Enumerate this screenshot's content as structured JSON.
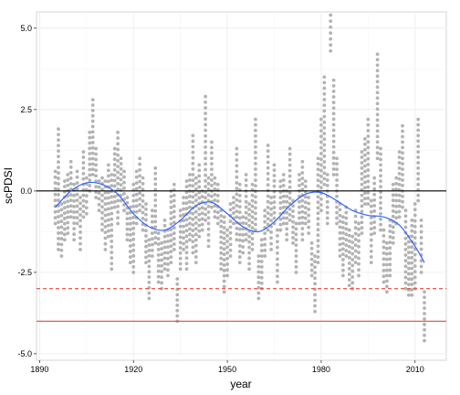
{
  "chart_data": {
    "type": "scatter",
    "xlabel": "year",
    "ylabel": "scPDSI",
    "xlim": [
      1889,
      2020
    ],
    "ylim": [
      -5.2,
      5.5
    ],
    "x_ticks": [
      1890,
      1920,
      1950,
      1980,
      2010
    ],
    "y_ticks": [
      -5.0,
      -2.5,
      0.0,
      2.5,
      5.0
    ],
    "x_tick_labels": [
      "1890",
      "1920",
      "1950",
      "1980",
      "2010"
    ],
    "y_tick_labels": [
      "-5.0",
      "-2.5",
      "0.0",
      "2.5",
      "5.0"
    ],
    "grid": true,
    "legend": "none",
    "point_color": "#b3b3b3",
    "annual_ranges": [
      [
        1895,
        -1.0,
        0.6
      ],
      [
        1896,
        -1.8,
        1.9
      ],
      [
        1897,
        -2.0,
        -0.4
      ],
      [
        1898,
        -1.5,
        0.3
      ],
      [
        1899,
        -1.3,
        0.5
      ],
      [
        1900,
        -0.8,
        0.9
      ],
      [
        1901,
        -1.5,
        0.2
      ],
      [
        1902,
        -1.0,
        0.6
      ],
      [
        1903,
        -1.8,
        -0.2
      ],
      [
        1904,
        -0.8,
        1.2
      ],
      [
        1905,
        -0.7,
        0.4
      ],
      [
        1906,
        0.0,
        1.8
      ],
      [
        1907,
        0.5,
        2.8
      ],
      [
        1908,
        -0.2,
        1.3
      ],
      [
        1909,
        -0.6,
        0.3
      ],
      [
        1910,
        -1.2,
        0.4
      ],
      [
        1911,
        -1.8,
        0.3
      ],
      [
        1912,
        -1.4,
        0.8
      ],
      [
        1913,
        -2.4,
        0.5
      ],
      [
        1914,
        -0.5,
        1.3
      ],
      [
        1915,
        -1.0,
        1.8
      ],
      [
        1916,
        -0.3,
        1.0
      ],
      [
        1917,
        -0.6,
        0.6
      ],
      [
        1918,
        -1.5,
        -0.2
      ],
      [
        1919,
        -2.2,
        -0.5
      ],
      [
        1920,
        -2.5,
        0.2
      ],
      [
        1921,
        -1.0,
        0.6
      ],
      [
        1922,
        -0.6,
        1.0
      ],
      [
        1923,
        -1.2,
        0.4
      ],
      [
        1924,
        -2.2,
        -0.4
      ],
      [
        1925,
        -3.3,
        -1.5
      ],
      [
        1926,
        -2.0,
        -0.6
      ],
      [
        1927,
        -1.6,
        0.7
      ],
      [
        1928,
        -2.8,
        -1.3
      ],
      [
        1929,
        -3.0,
        -1.6
      ],
      [
        1930,
        -2.4,
        -0.9
      ],
      [
        1931,
        -2.6,
        -1.2
      ],
      [
        1932,
        -2.2,
        0.0
      ],
      [
        1933,
        -1.8,
        0.2
      ],
      [
        1934,
        -4.0,
        -2.7
      ],
      [
        1935,
        -2.4,
        -0.6
      ],
      [
        1936,
        -1.8,
        -0.2
      ],
      [
        1937,
        -2.4,
        0.3
      ],
      [
        1938,
        -1.5,
        0.5
      ],
      [
        1939,
        -1.9,
        1.7
      ],
      [
        1940,
        -2.2,
        0.4
      ],
      [
        1941,
        -1.4,
        0.8
      ],
      [
        1942,
        -1.2,
        0.0
      ],
      [
        1943,
        -0.9,
        2.9
      ],
      [
        1944,
        -1.7,
        0.4
      ],
      [
        1945,
        -0.5,
        1.5
      ],
      [
        1946,
        -0.8,
        0.4
      ],
      [
        1947,
        -1.0,
        0.2
      ],
      [
        1948,
        -2.4,
        -0.6
      ],
      [
        1949,
        -3.1,
        -0.8
      ],
      [
        1950,
        -2.6,
        -1.2
      ],
      [
        1951,
        -2.0,
        -0.4
      ],
      [
        1952,
        -1.0,
        -0.2
      ],
      [
        1953,
        -1.5,
        1.3
      ],
      [
        1954,
        -2.2,
        0.2
      ],
      [
        1955,
        -1.9,
        -0.8
      ],
      [
        1956,
        -1.5,
        0.5
      ],
      [
        1957,
        -2.4,
        -0.4
      ],
      [
        1958,
        -1.8,
        0.2
      ],
      [
        1959,
        -1.2,
        2.2
      ],
      [
        1960,
        -3.3,
        -2.0
      ],
      [
        1961,
        -3.0,
        -1.5
      ],
      [
        1962,
        -2.0,
        -0.6
      ],
      [
        1963,
        -1.2,
        1.4
      ],
      [
        1964,
        -1.8,
        -0.2
      ],
      [
        1965,
        -1.0,
        0.8
      ],
      [
        1966,
        -2.8,
        -1.2
      ],
      [
        1967,
        -1.2,
        0.3
      ],
      [
        1968,
        -1.0,
        0.5
      ],
      [
        1969,
        -1.5,
        0.0
      ],
      [
        1970,
        -0.9,
        1.3
      ],
      [
        1971,
        -1.6,
        -0.3
      ],
      [
        1972,
        -2.5,
        -1.0
      ],
      [
        1973,
        -1.0,
        0.5
      ],
      [
        1974,
        -1.5,
        0.9
      ],
      [
        1975,
        -1.0,
        0.3
      ],
      [
        1976,
        -1.3,
        -0.2
      ],
      [
        1977,
        -2.6,
        -1.6
      ],
      [
        1978,
        -3.7,
        -2.0
      ],
      [
        1979,
        -2.2,
        1.0
      ],
      [
        1980,
        -0.6,
        2.2
      ],
      [
        1981,
        0.2,
        3.5
      ],
      [
        1982,
        -1.0,
        0.5
      ],
      [
        1983,
        4.3,
        5.4
      ],
      [
        1984,
        0.5,
        3.4
      ],
      [
        1985,
        -1.0,
        1.0
      ],
      [
        1986,
        -2.0,
        -0.4
      ],
      [
        1987,
        -2.6,
        -0.8
      ],
      [
        1988,
        -2.0,
        -0.5
      ],
      [
        1989,
        -2.9,
        -1.2
      ],
      [
        1990,
        -3.0,
        -1.4
      ],
      [
        1991,
        -2.2,
        -0.6
      ],
      [
        1992,
        -2.6,
        -1.0
      ],
      [
        1993,
        -1.3,
        1.2
      ],
      [
        1994,
        -0.4,
        1.6
      ],
      [
        1995,
        -0.4,
        2.2
      ],
      [
        1996,
        -2.2,
        -0.3
      ],
      [
        1997,
        -1.3,
        0.4
      ],
      [
        1998,
        1.0,
        4.2
      ],
      [
        1999,
        -1.2,
        1.3
      ],
      [
        2000,
        -2.8,
        -1.2
      ],
      [
        2001,
        -3.1,
        -1.6
      ],
      [
        2002,
        -2.6,
        -0.9
      ],
      [
        2003,
        -1.6,
        0.2
      ],
      [
        2004,
        -1.0,
        0.4
      ],
      [
        2005,
        -0.8,
        1.2
      ],
      [
        2006,
        -0.5,
        2.0
      ],
      [
        2007,
        -3.0,
        -0.6
      ],
      [
        2008,
        -3.2,
        -1.4
      ],
      [
        2009,
        -3.2,
        -0.9
      ],
      [
        2010,
        -3.0,
        -0.4
      ],
      [
        2011,
        -0.3,
        2.2
      ],
      [
        2012,
        -2.5,
        -0.9
      ],
      [
        2013,
        -4.6,
        -3.1
      ]
    ],
    "smooth": {
      "x": [
        1895,
        1900,
        1905,
        1910,
        1915,
        1920,
        1925,
        1930,
        1935,
        1940,
        1945,
        1950,
        1955,
        1960,
        1965,
        1970,
        1975,
        1980,
        1985,
        1990,
        1995,
        2000,
        2005,
        2010,
        2013
      ],
      "y": [
        -0.5,
        0.0,
        0.25,
        0.2,
        -0.1,
        -0.7,
        -1.1,
        -1.2,
        -0.9,
        -0.45,
        -0.35,
        -0.7,
        -1.1,
        -1.25,
        -0.95,
        -0.45,
        -0.1,
        -0.05,
        -0.3,
        -0.6,
        -0.75,
        -0.8,
        -1.05,
        -1.7,
        -2.2
      ],
      "color": "#3366ff"
    },
    "reference_lines": [
      {
        "y": 0.0,
        "color": "#000000",
        "style": "solid"
      },
      {
        "y": -3.0,
        "color": "#e8483b",
        "style": "dashed"
      },
      {
        "y": -4.0,
        "color": "#e8483b",
        "style": "solid"
      }
    ]
  }
}
